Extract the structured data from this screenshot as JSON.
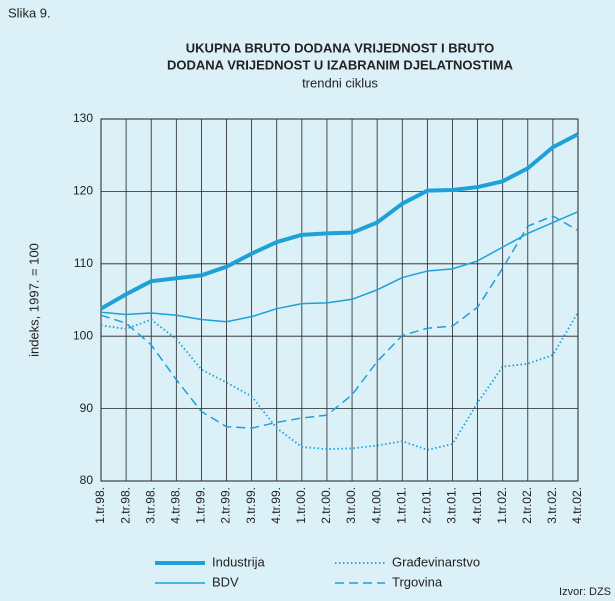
{
  "figure_label": "Slika 9.",
  "source": "Izvor: DZS",
  "chart_data": {
    "type": "line",
    "title": [
      "UKUPNA BRUTO DODANA VRIJEDNOST I BRUTO",
      "DODANA VRIJEDNOST U IZABRANIM DJELATNOSTIMA"
    ],
    "subtitle": "trendni ciklus",
    "y_label": "indeks, 1997. = 100",
    "categories": [
      "1.tr.98.",
      "2.tr.98.",
      "3.tr.98.",
      "4.tr.98.",
      "1.tr.99.",
      "2.tr.99.",
      "3.tr.99.",
      "4.tr.99.",
      "1.tr.00.",
      "2.tr.00.",
      "3.tr.00.",
      "4.tr.00.",
      "1.tr.01.",
      "2.tr.01.",
      "3.tr.01.",
      "4.tr.01.",
      "1.tr.02.",
      "2.tr.02.",
      "3.tr.02.",
      "4.tr.02."
    ],
    "series": [
      {
        "name": "Industrija",
        "color": "#1ea0d8",
        "line_style": "thick",
        "values": [
          103.8,
          105.8,
          107.6,
          108.0,
          108.4,
          109.6,
          111.4,
          113.0,
          114.0,
          114.2,
          114.3,
          115.7,
          118.3,
          120.1,
          120.2,
          120.6,
          121.4,
          123.2,
          126.1,
          127.9
        ]
      },
      {
        "name": "BDV",
        "color": "#1ea0d8",
        "line_style": "solid",
        "values": [
          103.3,
          103.0,
          103.2,
          102.9,
          102.3,
          102.0,
          102.7,
          103.8,
          104.5,
          104.6,
          105.1,
          106.4,
          108.1,
          109.0,
          109.3,
          110.4,
          112.3,
          114.2,
          115.7,
          117.2
        ]
      },
      {
        "name": "Građevinarstvo",
        "color": "#1ea0d8",
        "line_style": "dotted",
        "values": [
          101.5,
          101.0,
          102.3,
          99.6,
          95.4,
          93.6,
          91.7,
          87.3,
          84.7,
          84.4,
          84.5,
          84.9,
          85.5,
          84.3,
          85.1,
          90.8,
          95.8,
          96.2,
          97.4,
          103.3
        ]
      },
      {
        "name": "Trgovina",
        "color": "#1ea0d8",
        "line_style": "dashed",
        "values": [
          102.9,
          101.8,
          98.8,
          94.0,
          89.6,
          87.5,
          87.3,
          88.1,
          88.7,
          89.1,
          91.9,
          96.5,
          100.1,
          101.1,
          101.4,
          104.0,
          109.4,
          115.2,
          116.6,
          114.6
        ]
      }
    ],
    "ylim": [
      80,
      130
    ],
    "yticks": [
      80,
      90,
      100,
      110,
      120,
      130
    ],
    "grid": true
  }
}
